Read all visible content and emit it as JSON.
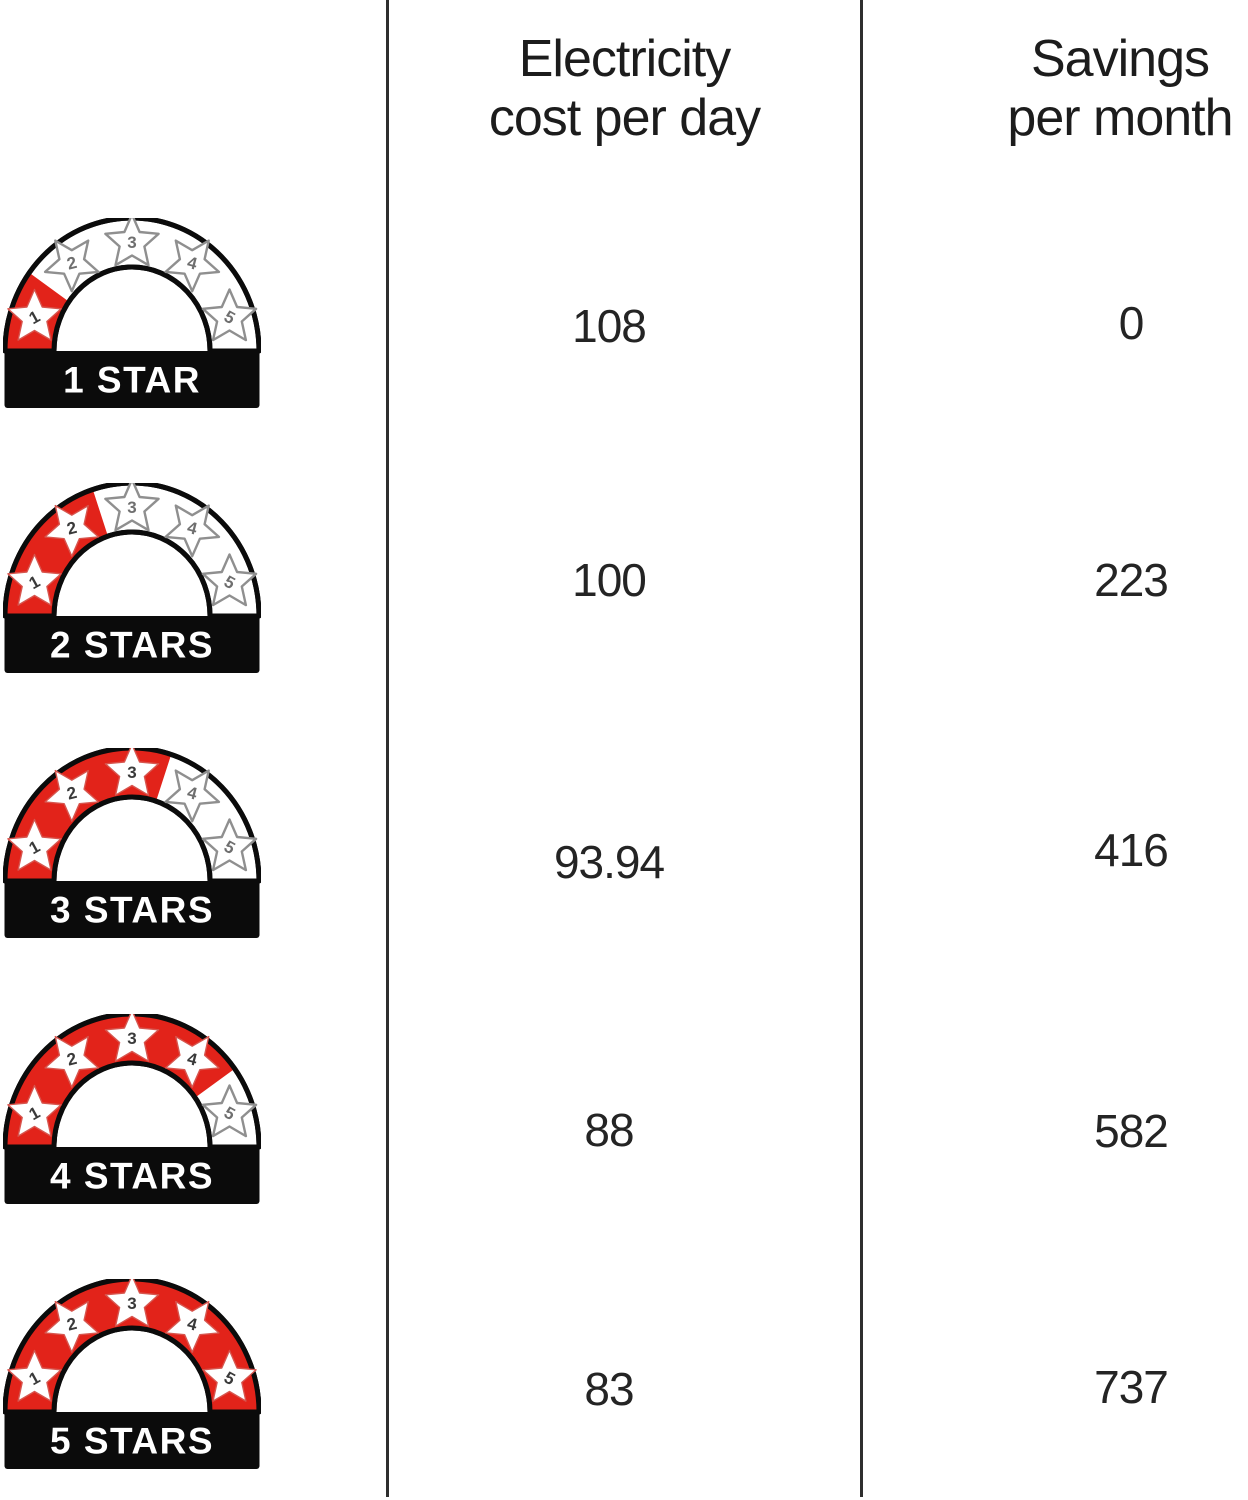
{
  "header": {
    "col1_line1": "Electricity",
    "col1_line2": "cost per day",
    "col2_line1": "Savings",
    "col2_line2": "per month"
  },
  "colors": {
    "accent_red": "#e2231a",
    "badge_black": "#0b0b0b",
    "divider_gray": "#2e2e2e",
    "text_dark": "#242424",
    "star_outline_gray": "#8f8f8f",
    "star_number_filled": "#3a3a3a",
    "star_number_empty": "#6f6f6f",
    "label_white": "#ffffff"
  },
  "rows": [
    {
      "stars": 1,
      "label": "1 STAR",
      "star_numbers": [
        "1",
        "2",
        "3",
        "4",
        "5"
      ],
      "electricity_cost_per_day": "108",
      "savings_per_month": "0"
    },
    {
      "stars": 2,
      "label": "2 STARS",
      "star_numbers": [
        "1",
        "2",
        "3",
        "4",
        "5"
      ],
      "electricity_cost_per_day": "100",
      "savings_per_month": "223"
    },
    {
      "stars": 3,
      "label": "3 STARS",
      "star_numbers": [
        "1",
        "2",
        "3",
        "4",
        "5"
      ],
      "electricity_cost_per_day": "93.94",
      "savings_per_month": "416"
    },
    {
      "stars": 4,
      "label": "4 STARS",
      "star_numbers": [
        "1",
        "2",
        "3",
        "4",
        "5"
      ],
      "electricity_cost_per_day": "88",
      "savings_per_month": "582"
    },
    {
      "stars": 5,
      "label": "5 STARS",
      "star_numbers": [
        "1",
        "2",
        "3",
        "4",
        "5"
      ],
      "electricity_cost_per_day": "83",
      "savings_per_month": "737"
    }
  ],
  "chart_data": {
    "type": "table",
    "title": "",
    "categories": [
      "1 STAR",
      "2 STARS",
      "3 STARS",
      "4 STARS",
      "5 STARS"
    ],
    "series": [
      {
        "name": "Electricity cost per day",
        "values": [
          108,
          100,
          93.94,
          88,
          83
        ]
      },
      {
        "name": "Savings per month",
        "values": [
          0,
          223,
          416,
          582,
          737
        ]
      }
    ],
    "legend_position": "none",
    "grid": false
  }
}
